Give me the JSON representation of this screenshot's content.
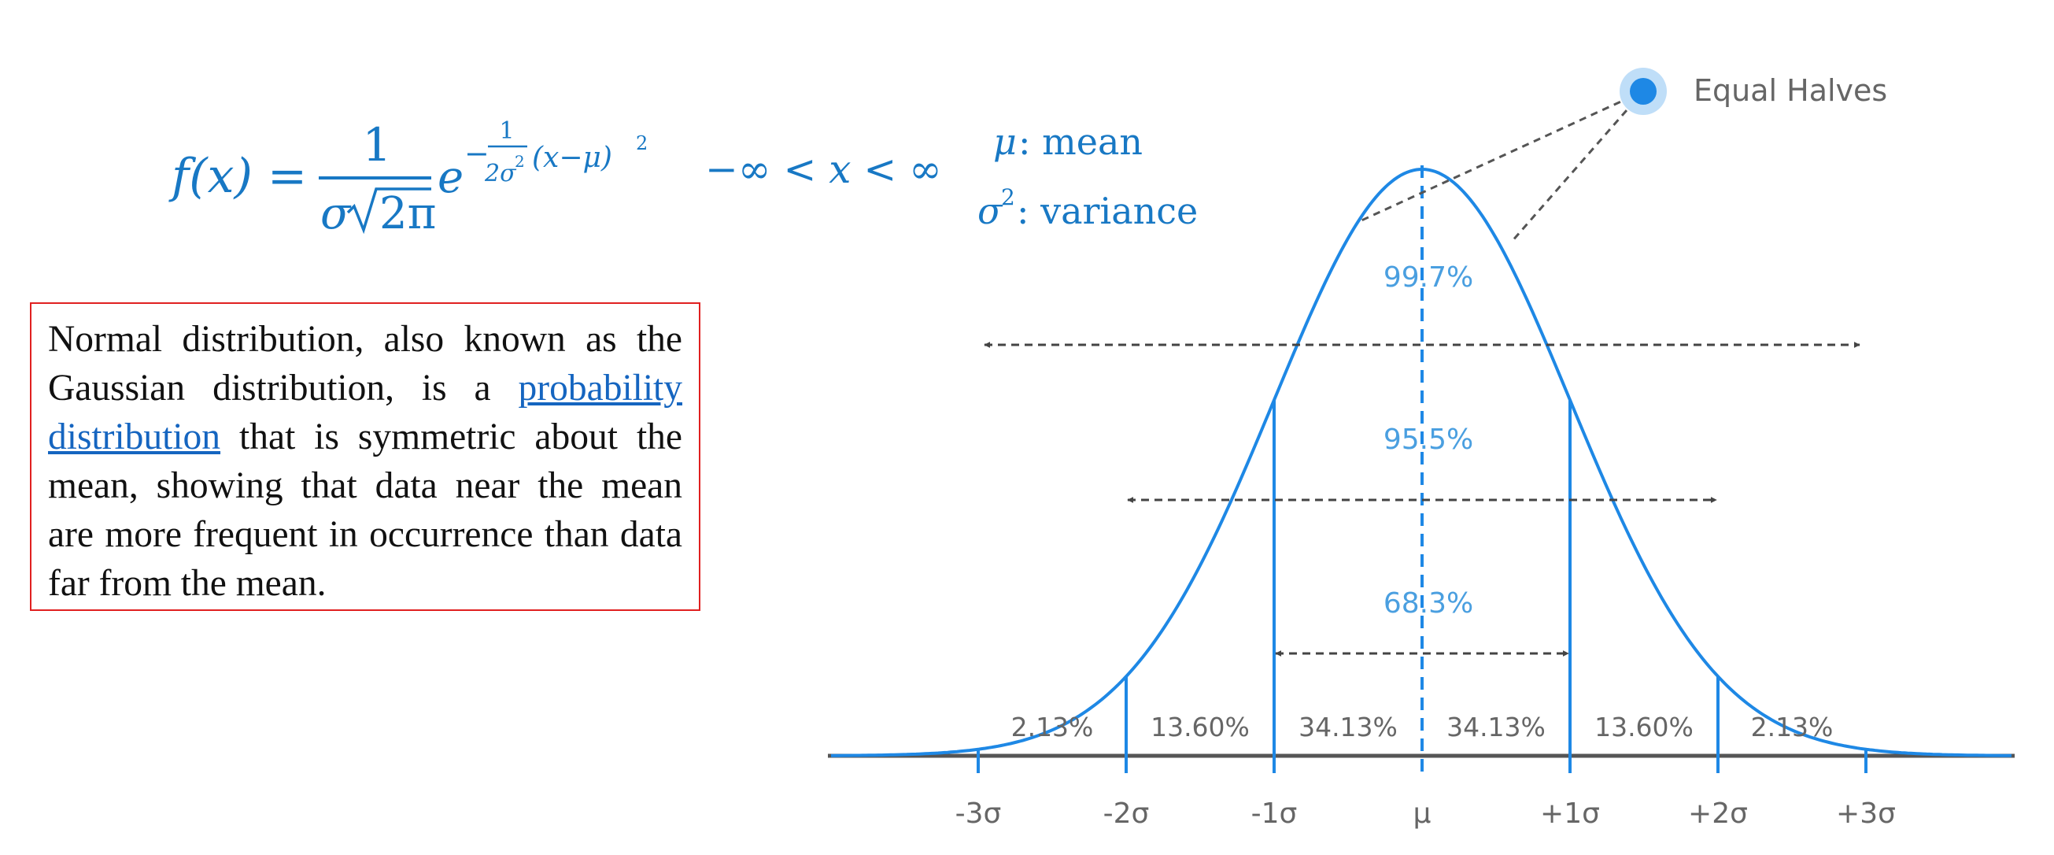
{
  "formula": {
    "lhs": "f(x) =",
    "numerator": "1",
    "sigma": "σ",
    "sqrt_arg": "2π",
    "exp_base": "e",
    "exp_minus": "−",
    "exp_frac_num": "1",
    "exp_frac_den": "2σ",
    "exp_frac_den_pow": "2",
    "exp_term": "(x−μ)",
    "exp_term_pow": "2",
    "domain": "−∞ < x < ∞"
  },
  "legend": {
    "mean_symbol": "μ",
    "mean_text": ": mean",
    "variance_symbol": "σ",
    "variance_pow": "2",
    "variance_text": ": variance"
  },
  "definition": {
    "before_link": "Normal distribution, also known as the Gaussian distribution, is a ",
    "link_text": "probability distribution",
    "after_link": " that is symmetric about the mean, showing that data near the mean are more frequent in occurrence than data far from the mean."
  },
  "diagram": {
    "callout_label": "Equal Halves",
    "ranges": [
      {
        "label": "99.7%",
        "sigma_span": 3
      },
      {
        "label": "95.5%",
        "sigma_span": 2
      },
      {
        "label": "68.3%",
        "sigma_span": 1
      }
    ],
    "segments": [
      "2.13%",
      "13.60%",
      "34.13%",
      "34.13%",
      "13.60%",
      "2.13%"
    ],
    "ticks": [
      "-3σ",
      "-2σ",
      "-1σ",
      "μ",
      "+1σ",
      "+2σ",
      "+3σ"
    ],
    "colors": {
      "curve": "#1e88e5",
      "label": "#4a9fe0",
      "arrow": "#444444",
      "callout_dot": "#1e88e5",
      "grey_text": "#666666"
    }
  }
}
